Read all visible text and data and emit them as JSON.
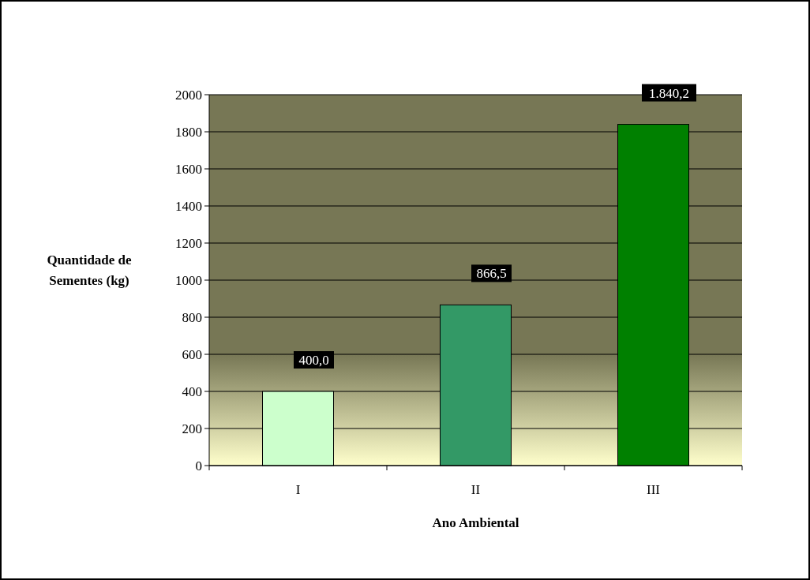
{
  "chart_data": {
    "type": "bar",
    "xlabel": "Ano Ambiental",
    "ylabel": "Quantidade de\nSementes (kg)",
    "categories": [
      "I",
      "II",
      "III"
    ],
    "values": [
      400.0,
      866.5,
      1840.2
    ],
    "colors": [
      "#ccffcc",
      "#339966",
      "#008000"
    ],
    "value_labels": [
      "400,0",
      "866,5",
      "1.840,2"
    ],
    "ylim": [
      0,
      2000
    ],
    "yticks": [
      0,
      200,
      400,
      600,
      800,
      1000,
      1200,
      1400,
      1600,
      1800,
      2000
    ],
    "grid": "y"
  }
}
